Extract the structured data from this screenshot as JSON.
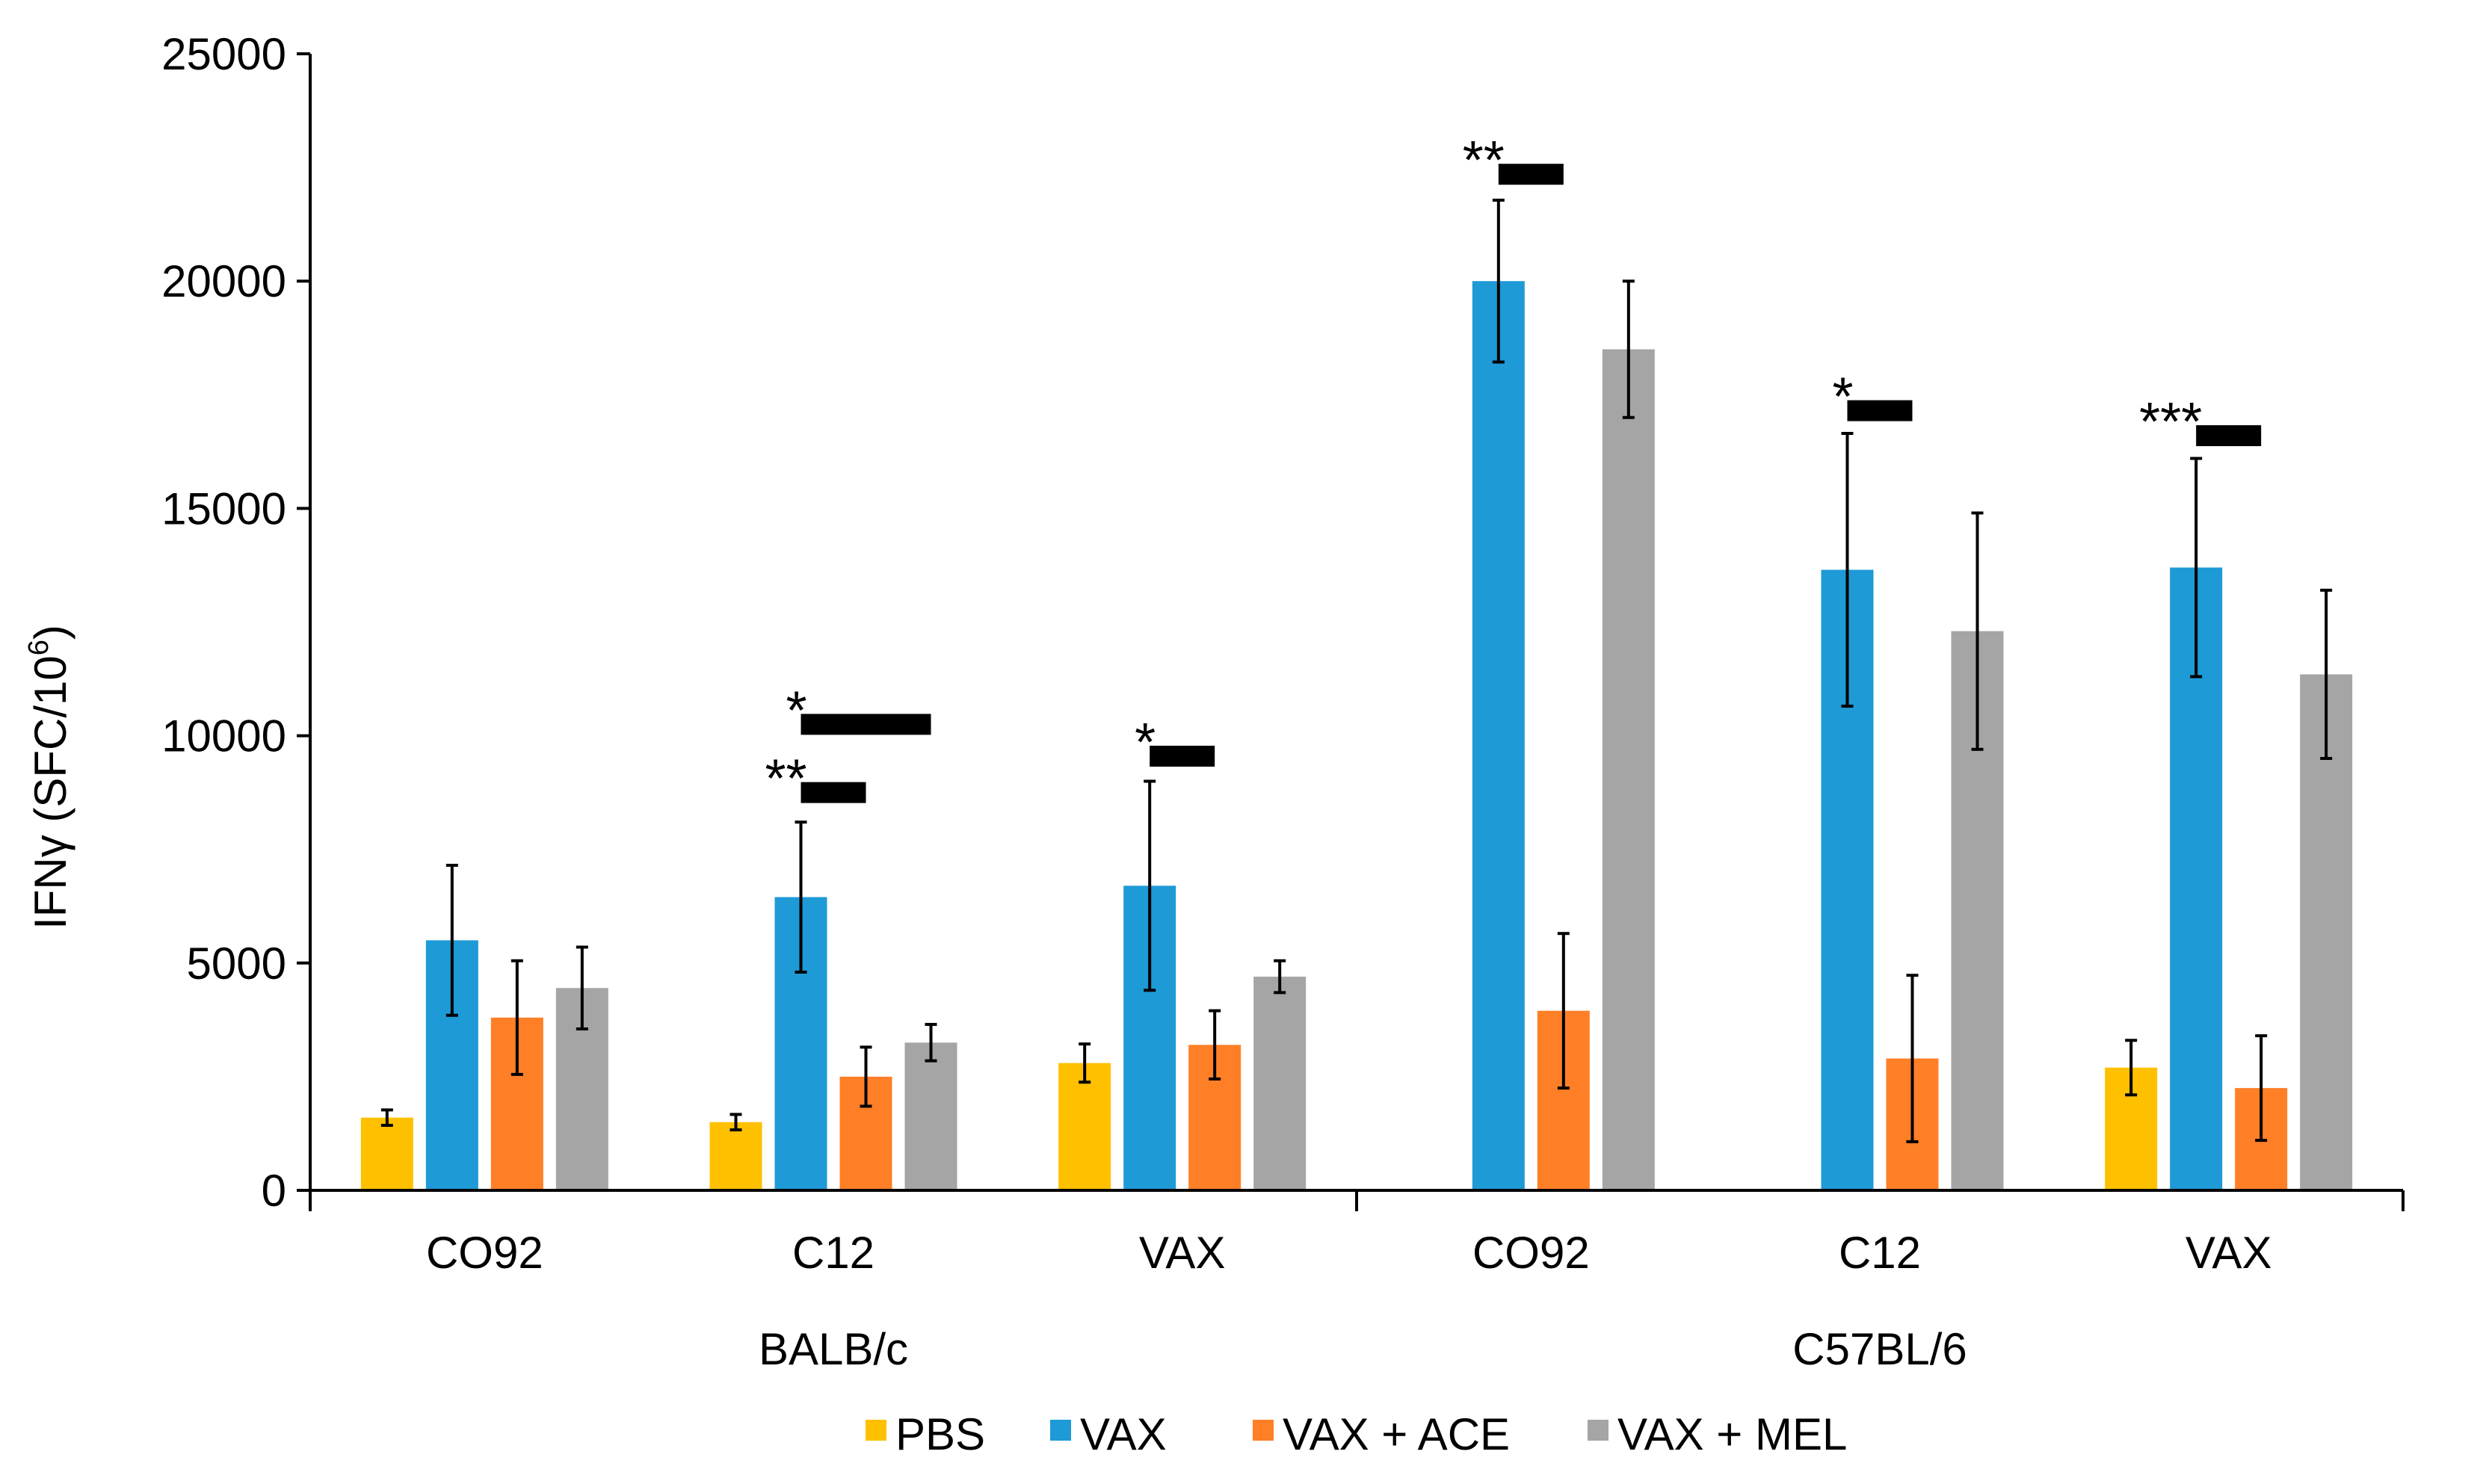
{
  "chart_data": {
    "type": "bar",
    "title": "",
    "xlabel": "",
    "ylabel_main": "IFNγ (SFC/10",
    "ylabel_sup": "6",
    "ylabel_close": ")",
    "ylim": [
      0,
      25000
    ],
    "yticks": [
      0,
      5000,
      10000,
      15000,
      20000,
      25000
    ],
    "tick_labels": [
      "0",
      "5000",
      "10000",
      "15000",
      "20000",
      "25000"
    ],
    "groups": [
      {
        "name": "BALB/c",
        "categories": [
          "CO92",
          "C12",
          "VAX"
        ]
      },
      {
        "name": "C57BL/6",
        "categories": [
          "CO92",
          "C12",
          "VAX"
        ]
      }
    ],
    "categories": [
      "CO92",
      "C12",
      "VAX",
      "CO92",
      "C12",
      "VAX"
    ],
    "colors": {
      "PBS": "#FFC000",
      "VAX": "#1E9AD6",
      "VAX + ACE": "#FF7F27",
      "VAX + MEL": "#A5A5A5"
    },
    "series": [
      {
        "name": "PBS",
        "values": [
          1600,
          1500,
          2800,
          null,
          null,
          2700
        ],
        "errors": [
          170,
          170,
          420,
          null,
          null,
          600
        ]
      },
      {
        "name": "VAX",
        "values": [
          5500,
          6450,
          6700,
          20000,
          13650,
          13700
        ],
        "errors": [
          1650,
          1650,
          2300,
          1780,
          3000,
          2400
        ]
      },
      {
        "name": "VAX + ACE",
        "values": [
          3800,
          2500,
          3200,
          3950,
          2900,
          2250
        ],
        "errors": [
          1250,
          650,
          750,
          1700,
          1830,
          1150
        ]
      },
      {
        "name": "VAX + MEL",
        "values": [
          4450,
          3250,
          4700,
          18500,
          12300,
          11350
        ],
        "errors": [
          900,
          400,
          350,
          1500,
          2600,
          1850
        ]
      }
    ],
    "significance": [
      {
        "label": "**",
        "category": 1,
        "from": 1,
        "to": 2,
        "y": 8750
      },
      {
        "label": "*",
        "category": 1,
        "from": 1,
        "to": 3,
        "y": 10250
      },
      {
        "label": "*",
        "category": 2,
        "from": 1,
        "to": 2,
        "y": 9550
      },
      {
        "label": "**",
        "category": 3,
        "from": 1,
        "to": 2,
        "y": 22350
      },
      {
        "label": "*",
        "category": 4,
        "from": 1,
        "to": 2,
        "y": 17150
      },
      {
        "label": "***",
        "category": 5,
        "from": 1,
        "to": 2,
        "y": 16600
      }
    ],
    "legend": {
      "position": "bottom",
      "entries": [
        "PBS",
        "VAX",
        "VAX + ACE",
        "VAX + MEL"
      ]
    }
  }
}
